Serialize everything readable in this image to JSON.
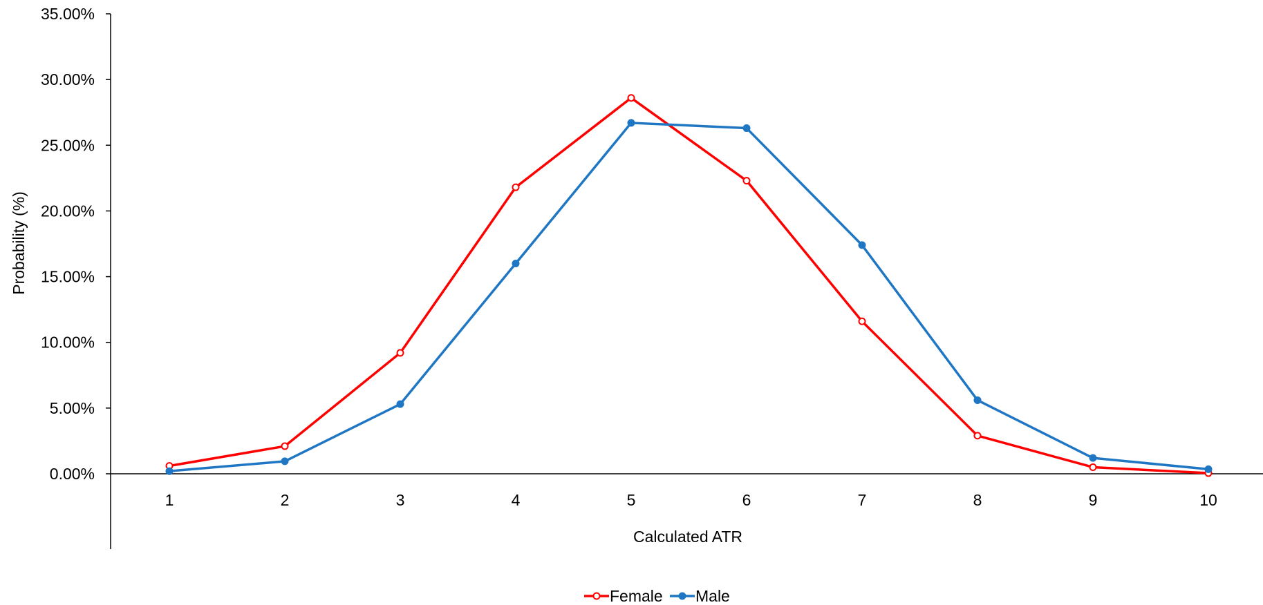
{
  "chart_data": {
    "type": "line",
    "title": "",
    "xlabel": "Calculated ATR",
    "ylabel": "Probability (%)",
    "categories": [
      1,
      2,
      3,
      4,
      5,
      6,
      7,
      8,
      9,
      10
    ],
    "category_labels": [
      "1",
      "2",
      "3",
      "4",
      "5",
      "6",
      "7",
      "8",
      "9",
      "10"
    ],
    "ylim": [
      0,
      35
    ],
    "yticks": [
      0,
      5,
      10,
      15,
      20,
      25,
      30,
      35
    ],
    "ytick_labels": [
      "0.00%",
      "5.00%",
      "10.00%",
      "15.00%",
      "20.00%",
      "25.00%",
      "30.00%",
      "35.00%"
    ],
    "grid": false,
    "legend": "bottom",
    "series": [
      {
        "name": "Female",
        "color": "#ff0000",
        "marker": "open-circle",
        "values": [
          0.6,
          2.1,
          9.2,
          21.8,
          28.6,
          22.3,
          11.6,
          2.9,
          0.5,
          0.05
        ]
      },
      {
        "name": "Male",
        "color": "#1f77c4",
        "marker": "filled-circle",
        "values": [
          0.2,
          0.95,
          5.3,
          16.0,
          26.7,
          26.3,
          17.4,
          5.6,
          1.2,
          0.35
        ]
      }
    ]
  }
}
